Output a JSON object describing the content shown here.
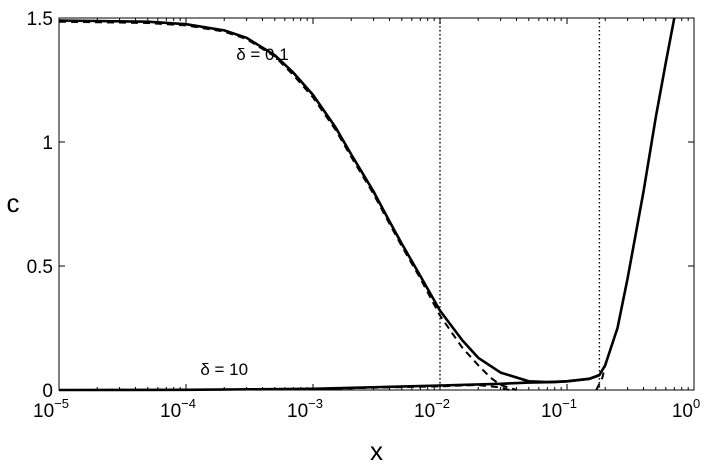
{
  "chart_data": {
    "type": "line",
    "title": "",
    "xlabel": "x",
    "ylabel": "c",
    "xscale": "log",
    "xlim": [
      1e-05,
      1
    ],
    "ylim": [
      0,
      1.5
    ],
    "grid": false,
    "x_ticks": [
      {
        "base": "10",
        "exp": "−5",
        "value": 1e-05
      },
      {
        "base": "10",
        "exp": "−4",
        "value": 0.0001
      },
      {
        "base": "10",
        "exp": "−3",
        "value": 0.001
      },
      {
        "base": "10",
        "exp": "−2",
        "value": 0.01
      },
      {
        "base": "10",
        "exp": "−1",
        "value": 0.1
      },
      {
        "base": "10",
        "exp": "0",
        "value": 1
      }
    ],
    "y_ticks": [
      {
        "label": "0",
        "value": 0
      },
      {
        "label": "0.5",
        "value": 0.5
      },
      {
        "label": "1",
        "value": 1
      },
      {
        "label": "1.5",
        "value": 1.5
      }
    ],
    "annotations": [
      {
        "text": "δ = 0.1",
        "x": 0.0004,
        "y": 1.33
      },
      {
        "text": "δ = 10",
        "x": 0.0002,
        "y": 0.06
      }
    ],
    "vlines": [
      0.01,
      0.18
    ],
    "series": [
      {
        "style": "solid",
        "points": [
          [
            1e-05,
            1.49
          ],
          [
            2e-05,
            1.488
          ],
          [
            5e-05,
            1.485
          ],
          [
            0.0001,
            1.475
          ],
          [
            0.0002,
            1.45
          ],
          [
            0.0003,
            1.42
          ],
          [
            0.0005,
            1.35
          ],
          [
            0.0007,
            1.28
          ],
          [
            0.001,
            1.19
          ],
          [
            0.0015,
            1.06
          ],
          [
            0.002,
            0.95
          ],
          [
            0.003,
            0.8
          ],
          [
            0.004,
            0.68
          ],
          [
            0.005,
            0.59
          ],
          [
            0.007,
            0.46
          ],
          [
            0.01,
            0.32
          ],
          [
            0.015,
            0.2
          ],
          [
            0.02,
            0.13
          ],
          [
            0.03,
            0.07
          ],
          [
            0.05,
            0.035
          ],
          [
            0.07,
            0.032
          ],
          [
            0.1,
            0.035
          ],
          [
            0.15,
            0.045
          ],
          [
            0.18,
            0.06
          ],
          [
            0.2,
            0.1
          ],
          [
            0.25,
            0.25
          ],
          [
            0.3,
            0.45
          ],
          [
            0.4,
            0.8
          ],
          [
            0.5,
            1.1
          ],
          [
            0.6,
            1.32
          ],
          [
            0.7,
            1.5
          ]
        ]
      },
      {
        "style": "dashed",
        "points": [
          [
            1e-05,
            1.485
          ],
          [
            2e-05,
            1.483
          ],
          [
            5e-05,
            1.48
          ],
          [
            0.0001,
            1.47
          ],
          [
            0.0002,
            1.445
          ],
          [
            0.0003,
            1.415
          ],
          [
            0.0005,
            1.345
          ],
          [
            0.0007,
            1.27
          ],
          [
            0.001,
            1.18
          ],
          [
            0.0015,
            1.05
          ],
          [
            0.002,
            0.94
          ],
          [
            0.003,
            0.79
          ],
          [
            0.004,
            0.67
          ],
          [
            0.005,
            0.58
          ],
          [
            0.007,
            0.45
          ],
          [
            0.01,
            0.3
          ],
          [
            0.015,
            0.17
          ],
          [
            0.02,
            0.1
          ],
          [
            0.025,
            0.05
          ],
          [
            0.03,
            0.02
          ],
          [
            0.04,
            0.0
          ]
        ]
      },
      {
        "style": "solid",
        "points": [
          [
            1e-05,
            0.0
          ],
          [
            0.0001,
            0.001
          ],
          [
            0.001,
            0.005
          ],
          [
            0.01,
            0.018
          ],
          [
            0.03,
            0.025
          ],
          [
            0.05,
            0.03
          ],
          [
            0.08,
            0.032
          ],
          [
            0.1,
            0.035
          ],
          [
            0.15,
            0.045
          ],
          [
            0.18,
            0.06
          ]
        ]
      },
      {
        "style": "dashed",
        "points": [
          [
            1e-05,
            0.0
          ],
          [
            0.0001,
            0.001
          ],
          [
            0.001,
            0.004
          ],
          [
            0.01,
            0.015
          ],
          [
            0.02,
            0.02
          ],
          [
            0.03,
            0.01
          ],
          [
            0.035,
            0.0
          ]
        ]
      },
      {
        "style": "dashed",
        "points": [
          [
            0.17,
            0.0
          ],
          [
            0.19,
            0.05
          ],
          [
            0.2,
            0.1
          ]
        ]
      }
    ]
  }
}
